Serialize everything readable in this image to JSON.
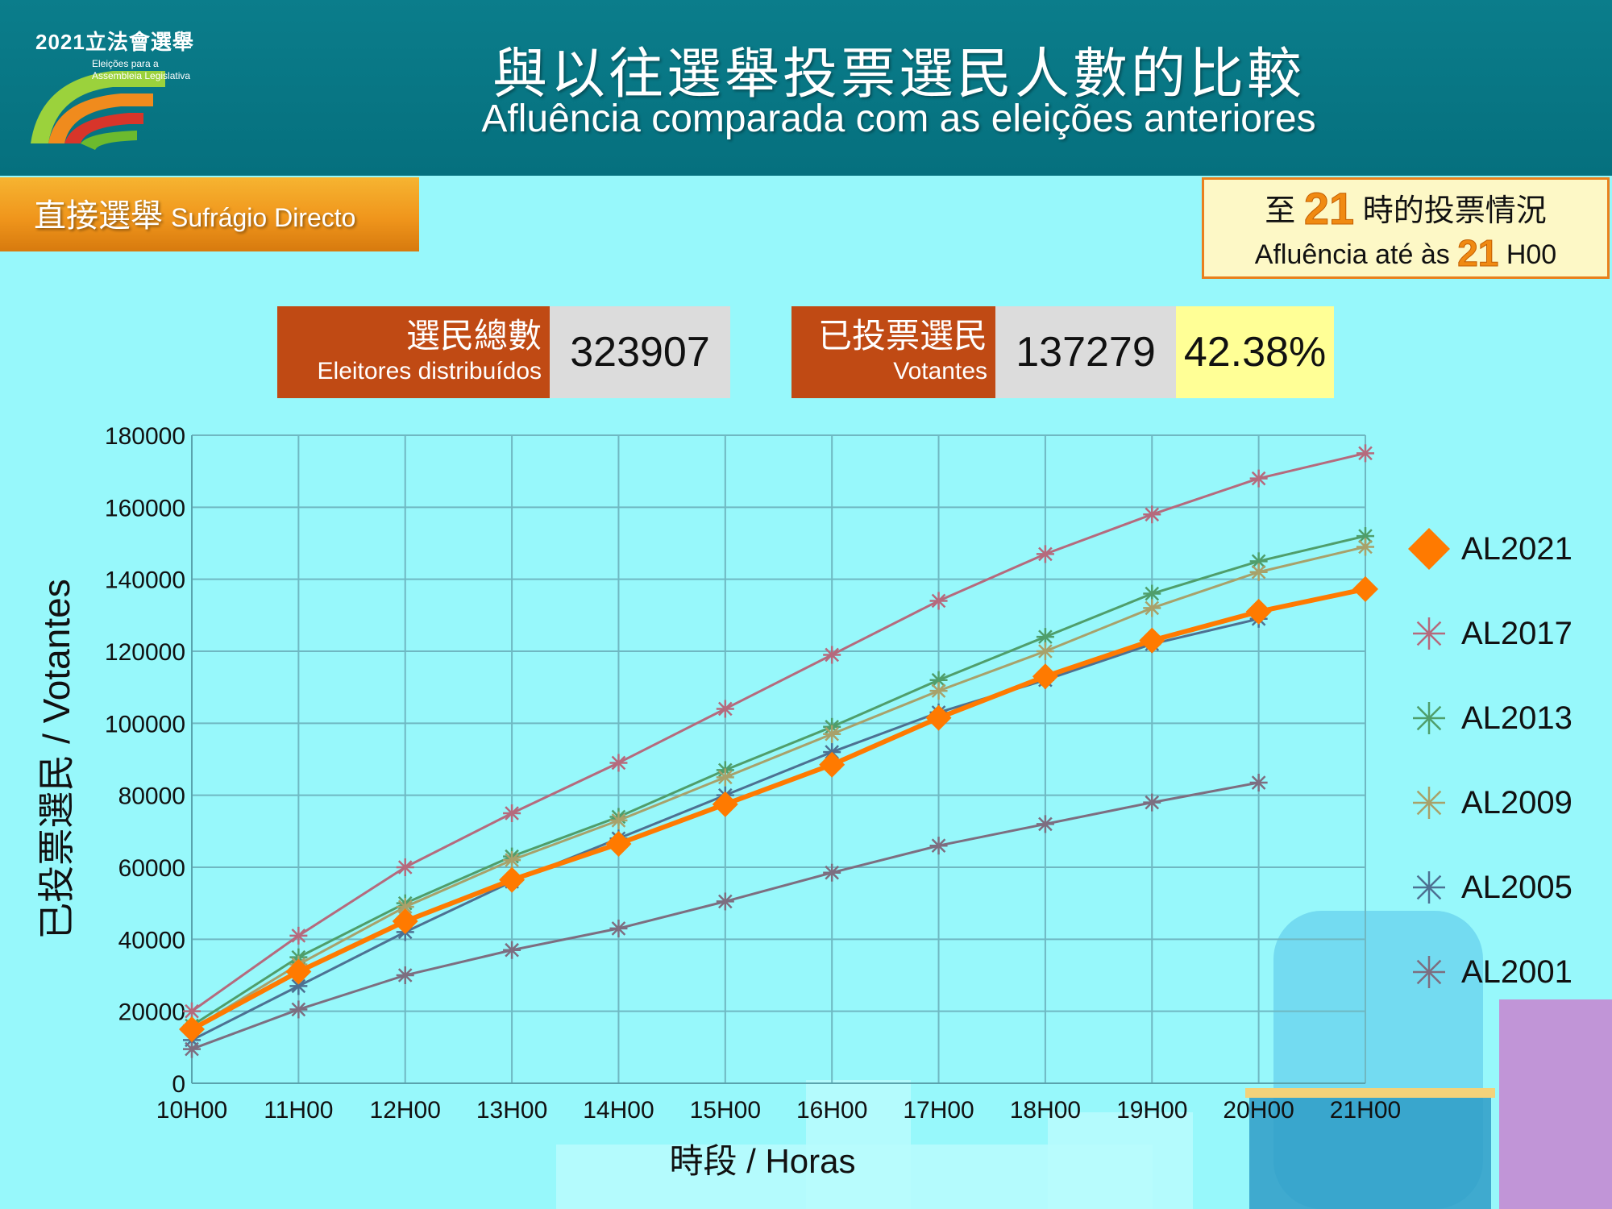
{
  "header": {
    "logo_year": "2021立法會選舉",
    "logo_line1": "Eleições para a",
    "logo_line2": "Assembleia Legislativa",
    "title_zh": "與以往選舉投票選民人數的比較",
    "title_pt": "Afluência comparada com as eleições anteriores"
  },
  "section": {
    "label_zh": "直接選舉",
    "label_pt": "Sufrágio Directo"
  },
  "time_box": {
    "zh_prefix": "至",
    "zh_hour": "21",
    "zh_suffix": "時的投票情況",
    "pt_prefix": "Afluência até às",
    "pt_hour": "21",
    "pt_suffix": "H00"
  },
  "stats": {
    "registered_label_zh": "選民總數",
    "registered_label_pt": "Eleitores distribuídos",
    "registered_value": "323907",
    "voters_label_zh": "已投票選民",
    "voters_label_pt": "Votantes",
    "voters_value": "137279",
    "turnout": "42.38%"
  },
  "chart_data": {
    "type": "line",
    "title": "",
    "xlabel": "時段 / Horas",
    "ylabel": "已投票選民 / Votantes",
    "categories": [
      "10H00",
      "11H00",
      "12H00",
      "13H00",
      "14H00",
      "15H00",
      "16H00",
      "17H00",
      "18H00",
      "19H00",
      "20H00",
      "21H00"
    ],
    "y_ticks": [
      "0",
      "20000",
      "40000",
      "60000",
      "80000",
      "100000",
      "120000",
      "140000",
      "160000",
      "180000"
    ],
    "ylim": [
      0,
      180000
    ],
    "grid": true,
    "legend_position": "right",
    "series": [
      {
        "name": "AL2017",
        "color": "#b56a7d",
        "marker": "asterisk",
        "values": [
          20000,
          41000,
          60000,
          75000,
          89000,
          104000,
          119000,
          134000,
          147000,
          158000,
          168000,
          175000
        ]
      },
      {
        "name": "AL2013",
        "color": "#4f9e6b",
        "marker": "asterisk",
        "values": [
          16000,
          35000,
          50000,
          63000,
          74000,
          87000,
          99000,
          112000,
          124000,
          136000,
          145000,
          152000
        ]
      },
      {
        "name": "AL2009",
        "color": "#a8a16a",
        "marker": "asterisk",
        "values": [
          15000,
          33000,
          49000,
          62000,
          73000,
          85000,
          97000,
          109000,
          120000,
          132000,
          142000,
          149000
        ]
      },
      {
        "name": "AL2005",
        "color": "#4d7192",
        "marker": "asterisk",
        "values": [
          12000,
          27000,
          42000,
          56000,
          68000,
          80000,
          92000,
          103000,
          112000,
          122000,
          129000,
          null
        ]
      },
      {
        "name": "AL2001",
        "color": "#7d6e80",
        "marker": "asterisk",
        "values": [
          9500,
          20500,
          30000,
          37000,
          43000,
          50500,
          58500,
          66000,
          72000,
          78000,
          83500,
          null
        ]
      },
      {
        "name": "AL2021",
        "color": "#ff7a00",
        "marker": "diamond",
        "values": [
          15000,
          31000,
          45000,
          56500,
          66500,
          77500,
          88500,
          101500,
          113000,
          123000,
          131000,
          137279
        ]
      }
    ],
    "legend_order": [
      "AL2021",
      "AL2017",
      "AL2013",
      "AL2009",
      "AL2005",
      "AL2001"
    ]
  }
}
